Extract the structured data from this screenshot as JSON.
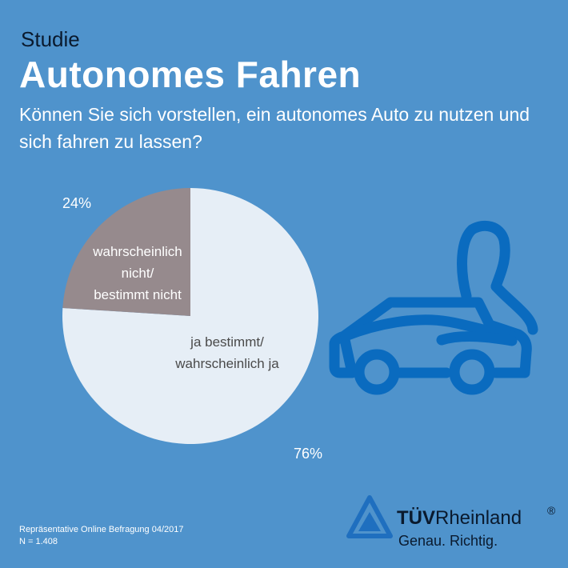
{
  "header": {
    "kicker": "Studie",
    "title": "Autonomes Fahren",
    "question": "Können Sie sich vorstellen, ein autonomes Auto zu nutzen und sich fahren zu lassen?"
  },
  "chart_data": {
    "type": "pie",
    "slices": [
      {
        "label_lines": [
          "ja bestimmt/",
          "wahrscheinlich ja"
        ],
        "value": 76,
        "value_label": "76%",
        "color": "#e6eef6"
      },
      {
        "label_lines": [
          "wahrscheinlich",
          "nicht/",
          "bestimmt nicht"
        ],
        "value": 24,
        "value_label": "24%",
        "color": "#968a8d"
      }
    ]
  },
  "footer": {
    "source": "Repräsentative Online Befragung 04/2017",
    "sample": "N = 1.408"
  },
  "brand": {
    "name_bold": "TÜV",
    "name_rest": "Rheinland",
    "registered": "®",
    "tagline": "Genau. Richtig."
  },
  "colors": {
    "background": "#4f93cc",
    "icon_blue": "#0a6bbf",
    "slice_label": "#4a4a4a"
  },
  "icons": [
    "car-with-driver-icon",
    "tuv-triangle-logo-icon"
  ]
}
